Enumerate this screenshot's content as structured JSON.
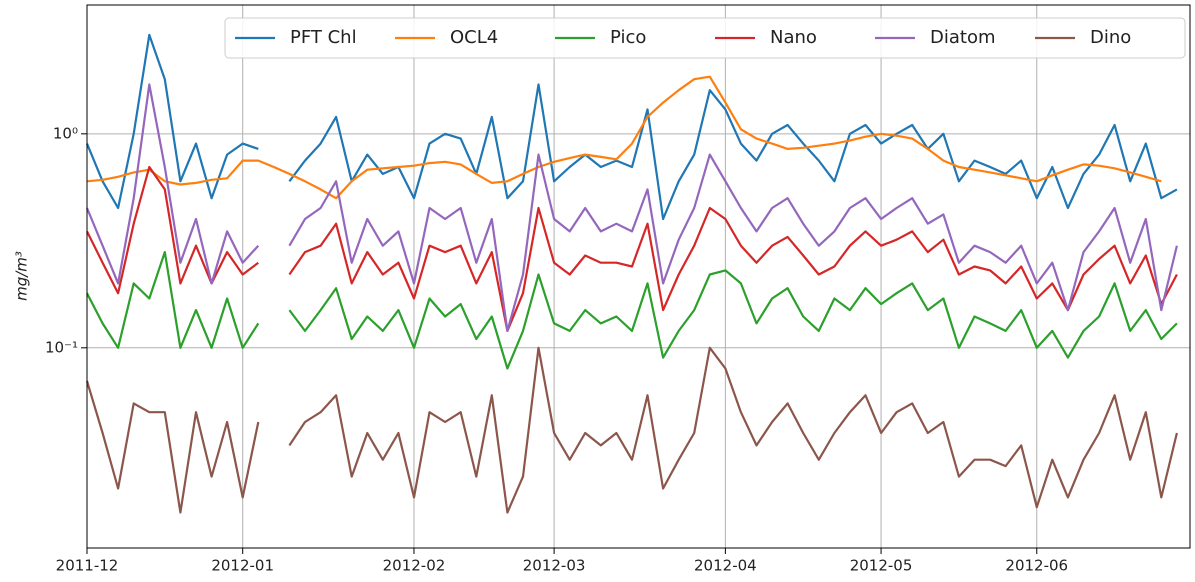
{
  "chart_data": {
    "type": "line",
    "ylabel": "mg/m³",
    "yscale": "log",
    "grid": true,
    "legend": "upper right",
    "categories": [
      "2011-12",
      null,
      null,
      null,
      null,
      null,
      null,
      null,
      null,
      null,
      "2012-01",
      null,
      null,
      null,
      null,
      null,
      null,
      null,
      null,
      null,
      null,
      "2012-02",
      null,
      null,
      null,
      null,
      null,
      null,
      null,
      null,
      "2012-03",
      null,
      null,
      null,
      null,
      null,
      null,
      null,
      null,
      null,
      null,
      "2012-04",
      null,
      null,
      null,
      null,
      null,
      null,
      null,
      null,
      null,
      "2012-05",
      null,
      null,
      null,
      null,
      null,
      null,
      null,
      null,
      null,
      "2012-06",
      null,
      null,
      null,
      null,
      null,
      null,
      null,
      null,
      null
    ],
    "ylim": [
      0.0116,
      4.0
    ],
    "yticks": [
      {
        "value": 0.1,
        "label": "10⁻¹"
      },
      {
        "value": 1,
        "label": "10⁰"
      }
    ],
    "series": [
      {
        "name": "PFT Chl",
        "color": "#1f77b4",
        "values": [
          0.9,
          0.6,
          0.45,
          1.0,
          2.9,
          1.8,
          0.6,
          0.9,
          0.5,
          0.8,
          0.9,
          0.85,
          null,
          0.6,
          0.75,
          0.9,
          1.2,
          0.6,
          0.8,
          0.65,
          0.7,
          0.5,
          0.9,
          1.0,
          0.95,
          0.65,
          1.2,
          0.5,
          0.6,
          1.7,
          0.6,
          0.7,
          0.8,
          0.7,
          0.75,
          0.7,
          1.3,
          0.4,
          0.6,
          0.8,
          1.6,
          1.3,
          0.9,
          0.75,
          1.0,
          1.1,
          0.9,
          0.75,
          0.6,
          1.0,
          1.1,
          0.9,
          1.0,
          1.1,
          0.85,
          1.0,
          0.6,
          0.75,
          0.7,
          0.65,
          0.75,
          0.5,
          0.7,
          0.45,
          0.65,
          0.8,
          1.1,
          0.6,
          0.9,
          0.5,
          0.55
        ]
      },
      {
        "name": "OCL4",
        "color": "#ff7f0e",
        "values": [
          0.6,
          0.61,
          0.63,
          0.66,
          0.68,
          0.6,
          0.58,
          0.59,
          0.61,
          0.62,
          0.75,
          0.75,
          0.7,
          0.65,
          0.6,
          0.55,
          0.5,
          0.6,
          0.68,
          0.69,
          0.7,
          0.71,
          0.73,
          0.74,
          0.72,
          0.65,
          0.59,
          0.6,
          0.65,
          0.7,
          0.74,
          0.77,
          0.8,
          0.78,
          0.76,
          0.9,
          1.2,
          1.4,
          1.6,
          1.8,
          1.85,
          1.4,
          1.05,
          0.95,
          0.9,
          0.85,
          0.86,
          0.88,
          0.9,
          0.93,
          0.97,
          1.0,
          0.98,
          0.95,
          0.85,
          0.75,
          0.7,
          0.68,
          0.66,
          0.64,
          0.62,
          0.6,
          0.64,
          0.68,
          0.72,
          0.71,
          0.69,
          0.66,
          0.63,
          0.6,
          null
        ]
      },
      {
        "name": "Pico",
        "color": "#2ca02c",
        "values": [
          0.18,
          0.13,
          0.1,
          0.2,
          0.17,
          0.28,
          0.1,
          0.15,
          0.1,
          0.17,
          0.1,
          0.13,
          null,
          0.15,
          0.12,
          0.15,
          0.19,
          0.11,
          0.14,
          0.12,
          0.15,
          0.1,
          0.17,
          0.14,
          0.16,
          0.11,
          0.14,
          0.08,
          0.12,
          0.22,
          0.13,
          0.12,
          0.15,
          0.13,
          0.14,
          0.12,
          0.2,
          0.09,
          0.12,
          0.15,
          0.22,
          0.23,
          0.2,
          0.13,
          0.17,
          0.19,
          0.14,
          0.12,
          0.17,
          0.15,
          0.19,
          0.16,
          0.18,
          0.2,
          0.15,
          0.17,
          0.1,
          0.14,
          0.13,
          0.12,
          0.15,
          0.1,
          0.12,
          0.09,
          0.12,
          0.14,
          0.2,
          0.12,
          0.15,
          0.11,
          0.13
        ]
      },
      {
        "name": "Nano",
        "color": "#d62728",
        "values": [
          0.35,
          0.25,
          0.18,
          0.38,
          0.7,
          0.55,
          0.2,
          0.3,
          0.2,
          0.28,
          0.22,
          0.25,
          null,
          0.22,
          0.28,
          0.3,
          0.38,
          0.2,
          0.28,
          0.22,
          0.25,
          0.17,
          0.3,
          0.28,
          0.3,
          0.2,
          0.28,
          0.12,
          0.18,
          0.45,
          0.25,
          0.22,
          0.27,
          0.25,
          0.25,
          0.24,
          0.38,
          0.15,
          0.22,
          0.3,
          0.45,
          0.4,
          0.3,
          0.25,
          0.3,
          0.33,
          0.27,
          0.22,
          0.24,
          0.3,
          0.35,
          0.3,
          0.32,
          0.35,
          0.28,
          0.32,
          0.22,
          0.24,
          0.23,
          0.2,
          0.24,
          0.17,
          0.2,
          0.15,
          0.22,
          0.26,
          0.3,
          0.2,
          0.27,
          0.16,
          0.22
        ]
      },
      {
        "name": "Diatom",
        "color": "#9467bd",
        "values": [
          0.45,
          0.3,
          0.2,
          0.5,
          1.7,
          0.7,
          0.25,
          0.4,
          0.2,
          0.35,
          0.25,
          0.3,
          null,
          0.3,
          0.4,
          0.45,
          0.6,
          0.25,
          0.4,
          0.3,
          0.35,
          0.2,
          0.45,
          0.4,
          0.45,
          0.25,
          0.4,
          0.12,
          0.22,
          0.8,
          0.4,
          0.35,
          0.45,
          0.35,
          0.38,
          0.35,
          0.55,
          0.2,
          0.32,
          0.45,
          0.8,
          0.6,
          0.45,
          0.35,
          0.45,
          0.5,
          0.38,
          0.3,
          0.35,
          0.45,
          0.5,
          0.4,
          0.45,
          0.5,
          0.38,
          0.42,
          0.25,
          0.3,
          0.28,
          0.25,
          0.3,
          0.2,
          0.25,
          0.15,
          0.28,
          0.35,
          0.45,
          0.25,
          0.4,
          0.15,
          0.3
        ]
      },
      {
        "name": "Dino",
        "color": "#8c564b",
        "values": [
          0.07,
          0.04,
          0.022,
          0.055,
          0.05,
          0.05,
          0.017,
          0.05,
          0.025,
          0.045,
          0.02,
          0.045,
          null,
          0.035,
          0.045,
          0.05,
          0.06,
          0.025,
          0.04,
          0.03,
          0.04,
          0.02,
          0.05,
          0.045,
          0.05,
          0.025,
          0.06,
          0.017,
          0.025,
          0.1,
          0.04,
          0.03,
          0.04,
          0.035,
          0.04,
          0.03,
          0.06,
          0.022,
          0.03,
          0.04,
          0.1,
          0.08,
          0.05,
          0.035,
          0.045,
          0.055,
          0.04,
          0.03,
          0.04,
          0.05,
          0.06,
          0.04,
          0.05,
          0.055,
          0.04,
          0.045,
          0.025,
          0.03,
          0.03,
          0.028,
          0.035,
          0.018,
          0.03,
          0.02,
          0.03,
          0.04,
          0.06,
          0.03,
          0.05,
          0.02,
          0.04
        ]
      }
    ]
  }
}
